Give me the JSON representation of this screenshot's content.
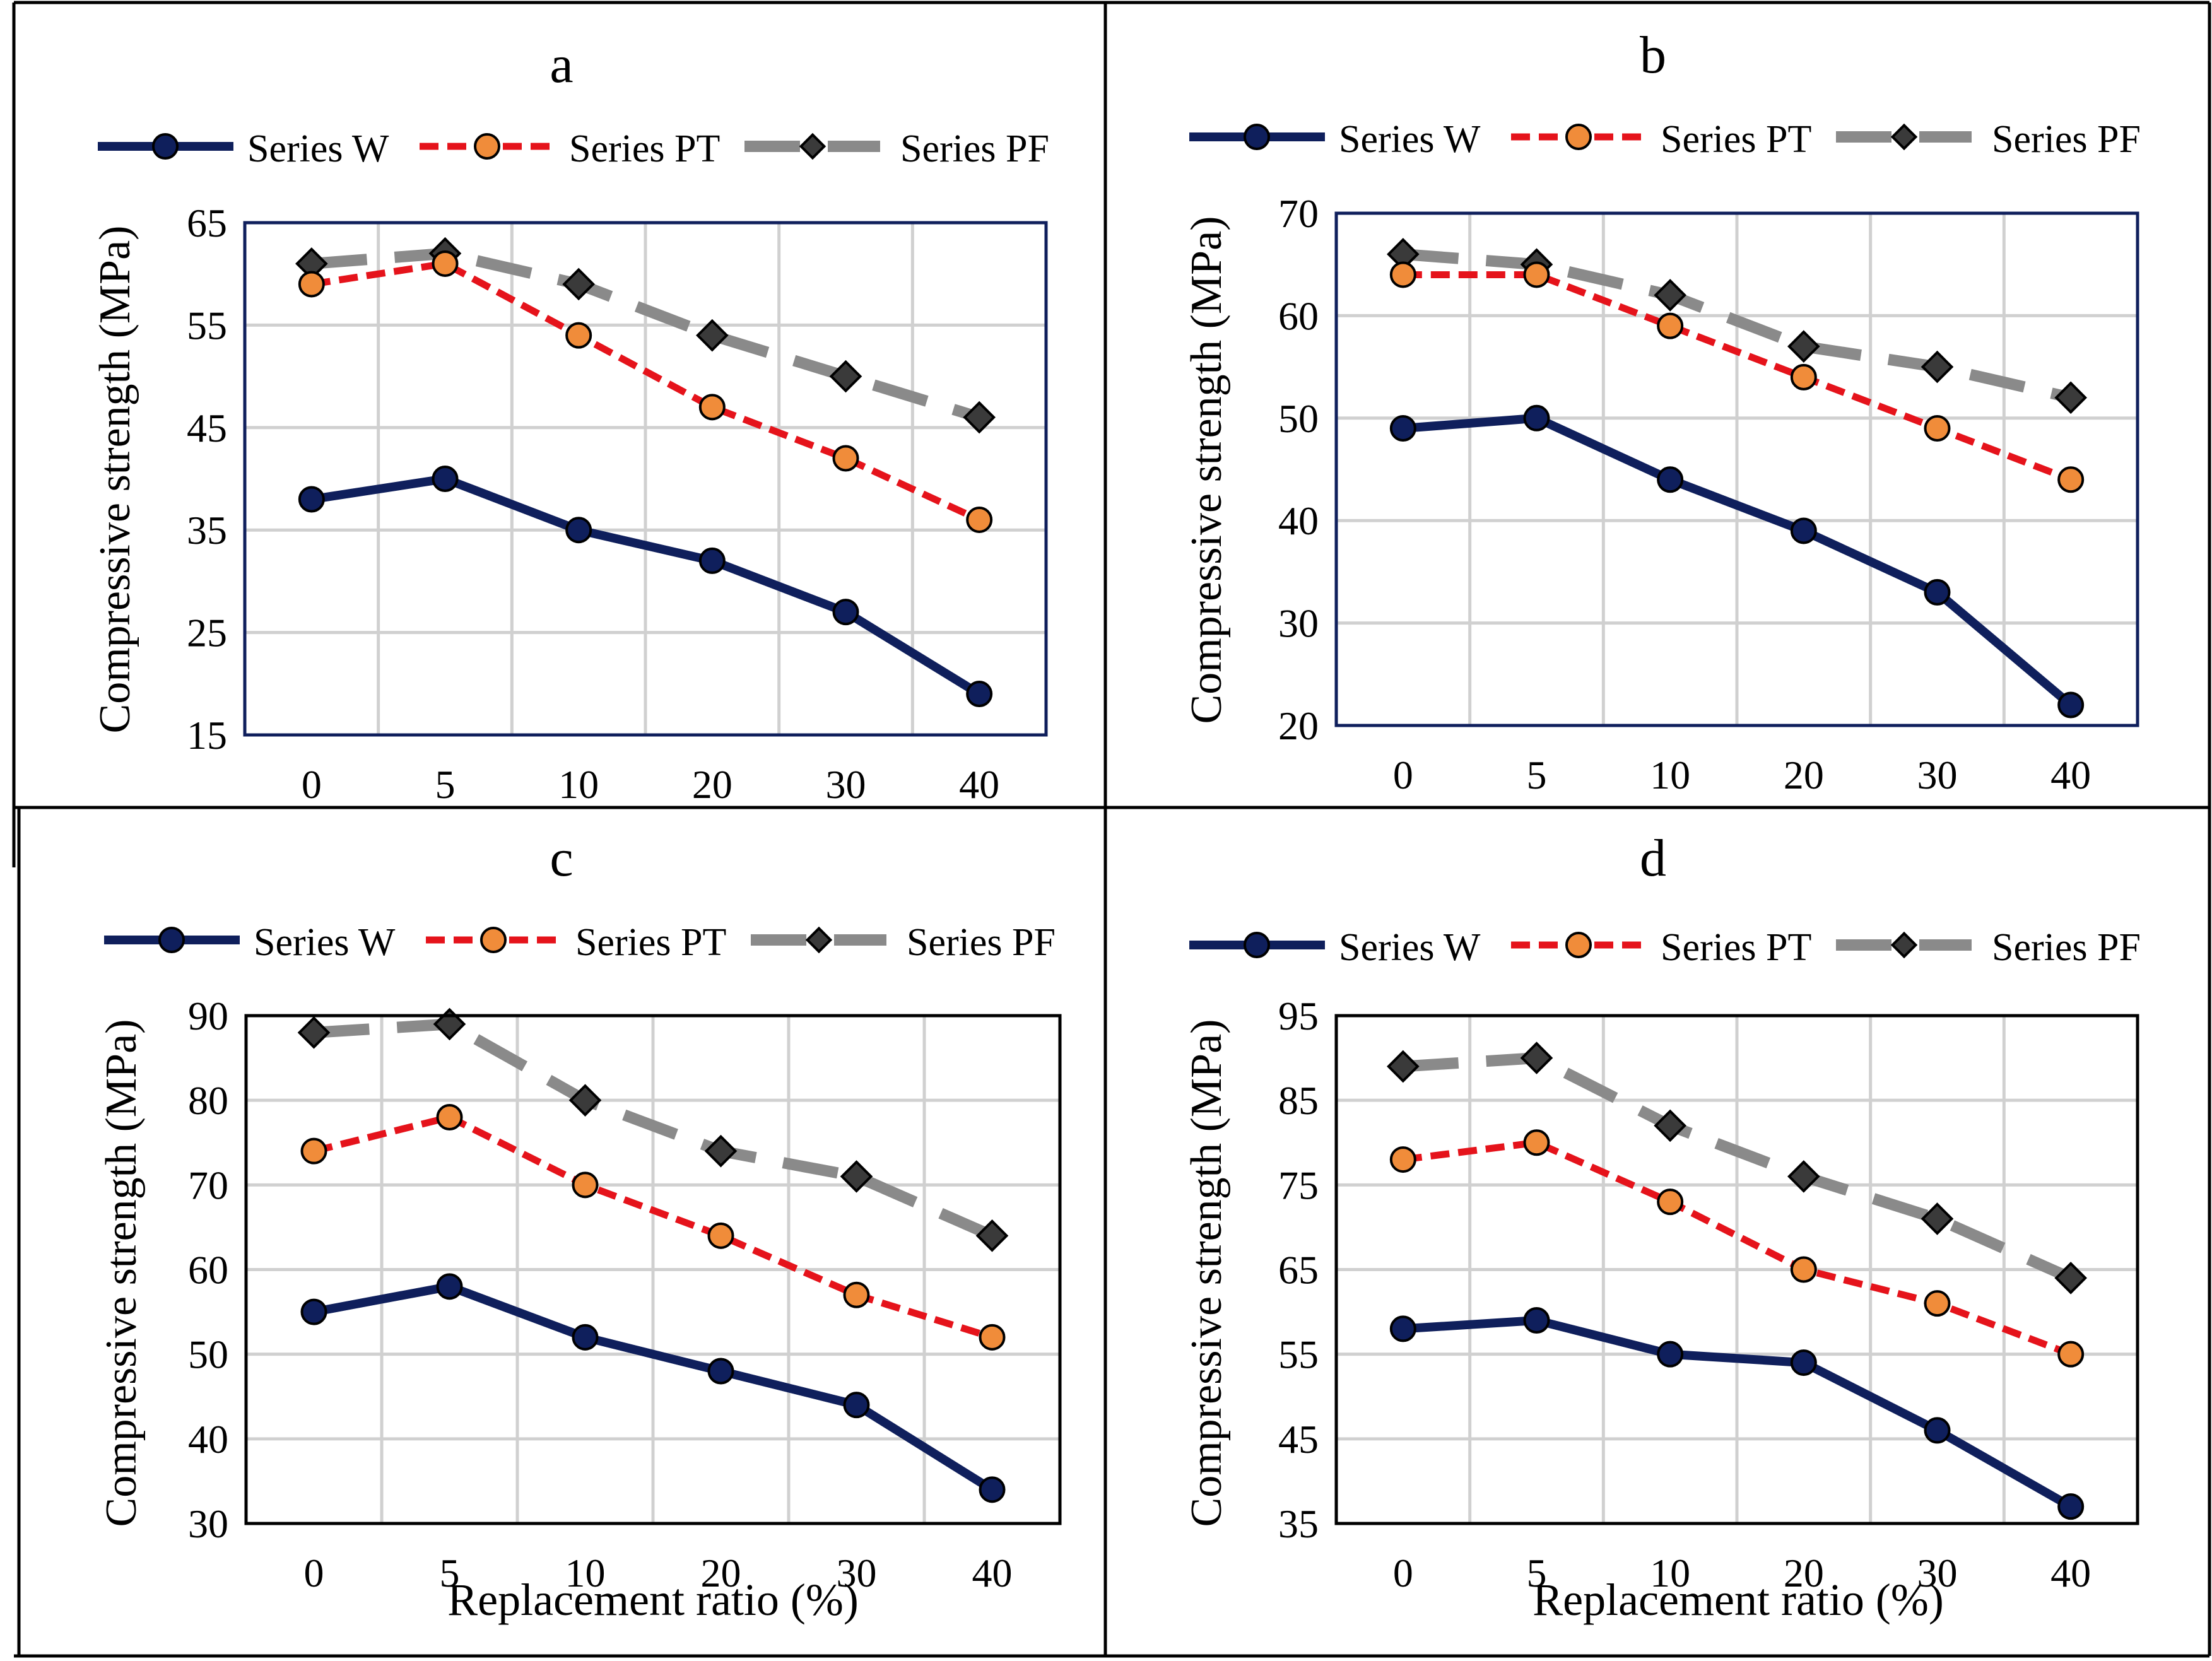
{
  "figure": {
    "colors": {
      "series_w": "#0f1f5c",
      "series_pt": "#e5131b",
      "series_pt_marker": "#f08c3a",
      "series_pf": "#8a8a8a",
      "series_pf_marker": "#3a3a3a",
      "grid": "#d0d0d0"
    }
  },
  "chart_data": [
    {
      "type": "line",
      "panel_label": "a",
      "title": "a",
      "xlabel": "",
      "ylabel": "Compressive strength (MPa)",
      "categories": [
        "0",
        "5",
        "10",
        "20",
        "30",
        "40"
      ],
      "ylim": [
        15,
        65
      ],
      "yticks": [
        "15",
        "25",
        "35",
        "45",
        "55",
        "65"
      ],
      "grid": true,
      "legend": "top",
      "series": [
        {
          "name": "Series W",
          "values": [
            38,
            40,
            35,
            32,
            27,
            19
          ]
        },
        {
          "name": "Series PT",
          "values": [
            59,
            61,
            54,
            47,
            42,
            36
          ]
        },
        {
          "name": "Series PF",
          "values": [
            61,
            62,
            59,
            54,
            50,
            46
          ]
        }
      ]
    },
    {
      "type": "line",
      "panel_label": "b",
      "title": "b",
      "xlabel": "",
      "ylabel": "Compressive strength (MPa)",
      "categories": [
        "0",
        "5",
        "10",
        "20",
        "30",
        "40"
      ],
      "ylim": [
        20,
        70
      ],
      "yticks": [
        "20",
        "30",
        "40",
        "50",
        "60",
        "70"
      ],
      "grid": true,
      "legend": "top",
      "series": [
        {
          "name": "Series W",
          "values": [
            49,
            50,
            44,
            39,
            33,
            22
          ]
        },
        {
          "name": "Series PT",
          "values": [
            64,
            64,
            59,
            54,
            49,
            44
          ]
        },
        {
          "name": "Series PF",
          "values": [
            66,
            65,
            62,
            57,
            55,
            52
          ]
        }
      ]
    },
    {
      "type": "line",
      "panel_label": "c",
      "title": "c",
      "xlabel": "Replacement ratio (%)",
      "ylabel": "Compressive strength (MPa)",
      "categories": [
        "0",
        "5",
        "10",
        "20",
        "30",
        "40"
      ],
      "ylim": [
        30,
        90
      ],
      "yticks": [
        "30",
        "40",
        "50",
        "60",
        "70",
        "80",
        "90"
      ],
      "grid": true,
      "legend": "top",
      "series": [
        {
          "name": "Series W",
          "values": [
            55,
            58,
            52,
            48,
            44,
            34
          ]
        },
        {
          "name": "Series PT",
          "values": [
            74,
            78,
            70,
            64,
            57,
            52
          ]
        },
        {
          "name": "Series PF",
          "values": [
            88,
            89,
            80,
            74,
            71,
            64
          ]
        }
      ]
    },
    {
      "type": "line",
      "panel_label": "d",
      "title": "d",
      "xlabel": "Replacement ratio (%)",
      "ylabel": "Compressive strength (MPa)",
      "categories": [
        "0",
        "5",
        "10",
        "20",
        "30",
        "40"
      ],
      "ylim": [
        35,
        95
      ],
      "yticks": [
        "35",
        "45",
        "55",
        "65",
        "75",
        "85",
        "95"
      ],
      "grid": true,
      "legend": "top",
      "series": [
        {
          "name": "Series W",
          "values": [
            58,
            59,
            55,
            54,
            46,
            37
          ]
        },
        {
          "name": "Series PT",
          "values": [
            78,
            80,
            73,
            65,
            61,
            55
          ]
        },
        {
          "name": "Series PF",
          "values": [
            89,
            90,
            82,
            76,
            71,
            64
          ]
        }
      ]
    }
  ]
}
